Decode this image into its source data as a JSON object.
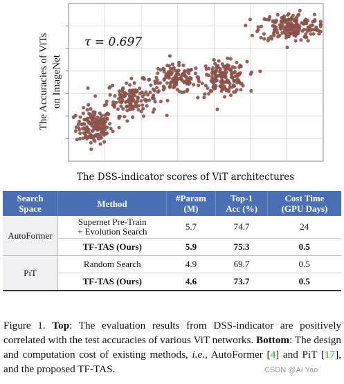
{
  "chart_data": {
    "type": "scatter",
    "xlabel": "The DSS-indicator scores of ViT architectures",
    "ylabel_lines": [
      "The Accuracies of ViTs",
      "on ImageNet"
    ],
    "annotation": "τ = 0.697",
    "grid": true,
    "legend": "none",
    "point_color": "#8b524a",
    "clusters": [
      {
        "cx": 0.1,
        "cy": 0.22,
        "sx": 0.035,
        "sy": 0.055,
        "n": 150
      },
      {
        "cx": 0.25,
        "cy": 0.4,
        "sx": 0.05,
        "sy": 0.055,
        "n": 140
      },
      {
        "cx": 0.42,
        "cy": 0.52,
        "sx": 0.05,
        "sy": 0.045,
        "n": 120
      },
      {
        "cx": 0.61,
        "cy": 0.53,
        "sx": 0.045,
        "sy": 0.05,
        "n": 170
      },
      {
        "cx": 0.87,
        "cy": 0.85,
        "sx": 0.06,
        "sy": 0.045,
        "n": 190
      }
    ],
    "correlation": 0.697
  },
  "table": {
    "headers": [
      [
        "Search",
        "Space"
      ],
      [
        "Method"
      ],
      [
        "#Param",
        "(M)"
      ],
      [
        "Top-1",
        "Acc (%)"
      ],
      [
        "Cost Time",
        "(GPU Days)"
      ]
    ],
    "groups": [
      {
        "space": "AutoFormer",
        "rows": [
          {
            "method": [
              "Supernet Pre-Train",
              "+ Evolution Search"
            ],
            "param": "5.7",
            "acc": "74.7",
            "cost": "24",
            "bold": false
          },
          {
            "method": [
              "TF-TAS (Ours)"
            ],
            "param": "5.9",
            "acc": "75.3",
            "cost": "0.5",
            "bold": true
          }
        ]
      },
      {
        "space": "PiT",
        "rows": [
          {
            "method": [
              "Random Search"
            ],
            "param": "4.9",
            "acc": "69.7",
            "cost": "0.5",
            "bold": false
          },
          {
            "method": [
              "TF-TAS (Ours)"
            ],
            "param": "4.6",
            "acc": "73.7",
            "cost": "0.5",
            "bold": true
          }
        ]
      }
    ]
  },
  "caption": {
    "figure": "Figure 1.",
    "top_label": "Top",
    "top_text": ": The evaluation results from DSS-indicator are positively correlated with the test accuracies of various ViT networks.",
    "bottom_label": "Bottom",
    "bottom_text_1": ": The design and computation cost of existing methods, ",
    "ie": "i.e.",
    "bottom_text_2": ", AutoFormer [",
    "cite1": "4",
    "bottom_text_3": "] and PiT [",
    "cite2": "17",
    "bottom_text_4": "], and the proposed TF-TAS."
  },
  "watermark": "CSDN @AI Yao"
}
